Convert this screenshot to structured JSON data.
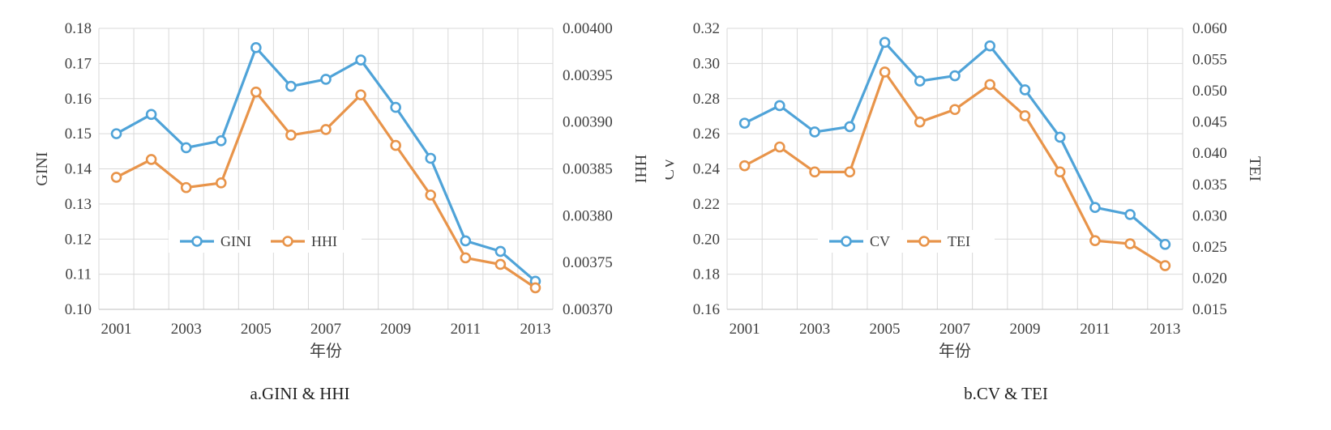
{
  "chart_data": [
    {
      "type": "line",
      "caption": "a.GINI & HHI",
      "xlabel": "年份",
      "ylabel_left": "GINI",
      "ylabel_right": "HHI",
      "x": [
        2001,
        2002,
        2003,
        2004,
        2005,
        2006,
        2007,
        2008,
        2009,
        2010,
        2011,
        2012,
        2013
      ],
      "x_tick_labels": [
        "2001",
        "2003",
        "2005",
        "2007",
        "2009",
        "2011",
        "2013"
      ],
      "y_left": {
        "ylim": [
          0.1,
          0.18
        ],
        "ticks": [
          "0.10",
          "0.11",
          "0.12",
          "0.13",
          "0.14",
          "0.15",
          "0.16",
          "0.17",
          "0.18"
        ]
      },
      "y_right": {
        "ylim": [
          0.0037,
          0.004
        ],
        "ticks": [
          "0.00370",
          "0.00375",
          "0.00380",
          "0.00385",
          "0.00390",
          "0.00395",
          "0.00400"
        ]
      },
      "series": [
        {
          "name": "GINI",
          "axis": "left",
          "color": "#4fa3d8",
          "values": [
            0.15,
            0.1555,
            0.146,
            0.148,
            0.1745,
            0.1635,
            0.1655,
            0.171,
            0.1575,
            0.143,
            0.1195,
            0.1165,
            0.108
          ]
        },
        {
          "name": "HHI",
          "axis": "right",
          "color": "#e8944a",
          "values": [
            0.003841,
            0.00386,
            0.00383,
            0.003835,
            0.003932,
            0.003886,
            0.003892,
            0.003929,
            0.003875,
            0.003822,
            0.003755,
            0.003748,
            0.003723
          ]
        }
      ],
      "legend": "center-bottom",
      "grid": true
    },
    {
      "type": "line",
      "caption": "b.CV & TEI",
      "xlabel": "年份",
      "ylabel_left": "CV",
      "ylabel_right": "TEI",
      "x": [
        2001,
        2002,
        2003,
        2004,
        2005,
        2006,
        2007,
        2008,
        2009,
        2010,
        2011,
        2012,
        2013
      ],
      "x_tick_labels": [
        "2001",
        "2003",
        "2005",
        "2007",
        "2009",
        "2011",
        "2013"
      ],
      "y_left": {
        "ylim": [
          0.16,
          0.32
        ],
        "ticks": [
          "0.16",
          "0.18",
          "0.20",
          "0.22",
          "0.24",
          "0.26",
          "0.28",
          "0.30",
          "0.32"
        ]
      },
      "y_right": {
        "ylim": [
          0.015,
          0.06
        ],
        "ticks": [
          "0.015",
          "0.020",
          "0.025",
          "0.030",
          "0.035",
          "0.040",
          "0.045",
          "0.050",
          "0.055",
          "0.060"
        ]
      },
      "series": [
        {
          "name": "CV",
          "axis": "left",
          "color": "#4fa3d8",
          "values": [
            0.266,
            0.276,
            0.261,
            0.264,
            0.312,
            0.29,
            0.293,
            0.31,
            0.285,
            0.258,
            0.218,
            0.214,
            0.197
          ]
        },
        {
          "name": "TEI",
          "axis": "right",
          "color": "#e8944a",
          "values": [
            0.038,
            0.041,
            0.037,
            0.037,
            0.053,
            0.045,
            0.047,
            0.051,
            0.046,
            0.037,
            0.026,
            0.0255,
            0.022
          ]
        }
      ],
      "legend": "center-bottom",
      "grid": true
    }
  ]
}
